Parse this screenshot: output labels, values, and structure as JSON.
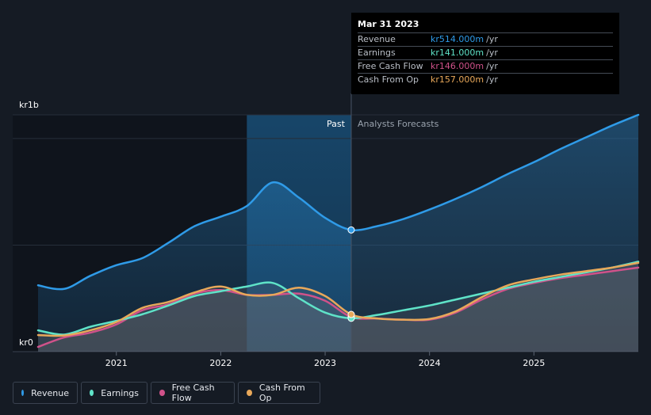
{
  "chart_data": {
    "type": "line",
    "currency_prefix": "kr",
    "y_axis": {
      "top_label": "kr1b",
      "bottom_label": "kr0",
      "ylim": [
        0,
        1000
      ]
    },
    "x_axis": {
      "ticks": [
        "2021",
        "2022",
        "2023",
        "2024",
        "2025"
      ],
      "xlim": [
        2020.25,
        2026.0
      ]
    },
    "regions": {
      "past_label": "Past",
      "forecast_label": "Analysts Forecasts",
      "divider_x": 2023.25,
      "highlight_start": 2022.25
    },
    "series": [
      {
        "key": "revenue",
        "name": "Revenue",
        "color": "#2f9be8",
        "x": [
          2020.25,
          2020.5,
          2020.75,
          2021.0,
          2021.25,
          2021.5,
          2021.75,
          2022.0,
          2022.25,
          2022.5,
          2022.75,
          2023.0,
          2023.25,
          2023.5,
          2023.75,
          2024.0,
          2024.25,
          2024.5,
          2024.75,
          2025.0,
          2025.25,
          2025.5,
          2025.75,
          2026.0
        ],
        "values": [
          280,
          265,
          320,
          365,
          395,
          460,
          530,
          570,
          615,
          715,
          650,
          565,
          514,
          530,
          560,
          600,
          645,
          695,
          750,
          800,
          855,
          905,
          955,
          1000
        ]
      },
      {
        "key": "earnings",
        "name": "Earnings",
        "color": "#5fe3c8",
        "x": [
          2020.25,
          2020.5,
          2020.75,
          2021.0,
          2021.25,
          2021.5,
          2021.75,
          2022.0,
          2022.25,
          2022.5,
          2022.75,
          2023.0,
          2023.25,
          2023.5,
          2023.75,
          2024.0,
          2024.25,
          2024.5,
          2024.75,
          2025.0,
          2025.25,
          2025.5,
          2025.75,
          2026.0
        ],
        "values": [
          90,
          72,
          105,
          130,
          158,
          195,
          235,
          255,
          275,
          290,
          225,
          165,
          141,
          155,
          175,
          195,
          220,
          245,
          270,
          295,
          315,
          335,
          355,
          380
        ]
      },
      {
        "key": "fcf",
        "name": "Free Cash Flow",
        "color": "#d0528a",
        "x": [
          2020.25,
          2020.5,
          2020.75,
          2021.0,
          2021.25,
          2021.5,
          2021.75,
          2022.0,
          2022.25,
          2022.5,
          2022.75,
          2023.0,
          2023.25,
          2023.5,
          2023.75,
          2024.0,
          2024.25,
          2024.5,
          2024.75,
          2025.0,
          2025.25,
          2025.5,
          2025.75,
          2026.0
        ],
        "values": [
          20,
          60,
          80,
          115,
          175,
          200,
          245,
          260,
          240,
          240,
          245,
          215,
          146,
          140,
          135,
          135,
          165,
          220,
          265,
          290,
          310,
          325,
          340,
          355
        ]
      },
      {
        "key": "cfo",
        "name": "Cash From Op",
        "color": "#e8a85a",
        "x": [
          2020.25,
          2020.5,
          2020.75,
          2021.0,
          2021.25,
          2021.5,
          2021.75,
          2022.0,
          2022.25,
          2022.5,
          2022.75,
          2023.0,
          2023.25,
          2023.5,
          2023.75,
          2024.0,
          2024.25,
          2024.5,
          2024.75,
          2025.0,
          2025.25,
          2025.5,
          2025.75,
          2026.0
        ],
        "values": [
          70,
          68,
          90,
          125,
          185,
          210,
          250,
          275,
          240,
          240,
          270,
          235,
          157,
          140,
          135,
          138,
          170,
          230,
          280,
          305,
          325,
          340,
          355,
          375
        ]
      }
    ]
  },
  "tooltip": {
    "date": "Mar 31 2023",
    "rows": [
      {
        "name": "Revenue",
        "value": "kr514.000m",
        "unit": "/yr",
        "color": "#2f9be8"
      },
      {
        "name": "Earnings",
        "value": "kr141.000m",
        "unit": "/yr",
        "color": "#5fe3c8"
      },
      {
        "name": "Free Cash Flow",
        "value": "kr146.000m",
        "unit": "/yr",
        "color": "#d0528a"
      },
      {
        "name": "Cash From Op",
        "value": "kr157.000m",
        "unit": "/yr",
        "color": "#e8a85a"
      }
    ]
  },
  "legend": [
    {
      "label": "Revenue",
      "color": "#2f9be8"
    },
    {
      "label": "Earnings",
      "color": "#5fe3c8"
    },
    {
      "label": "Free Cash Flow",
      "color": "#d0528a"
    },
    {
      "label": "Cash From Op",
      "color": "#e8a85a"
    }
  ]
}
